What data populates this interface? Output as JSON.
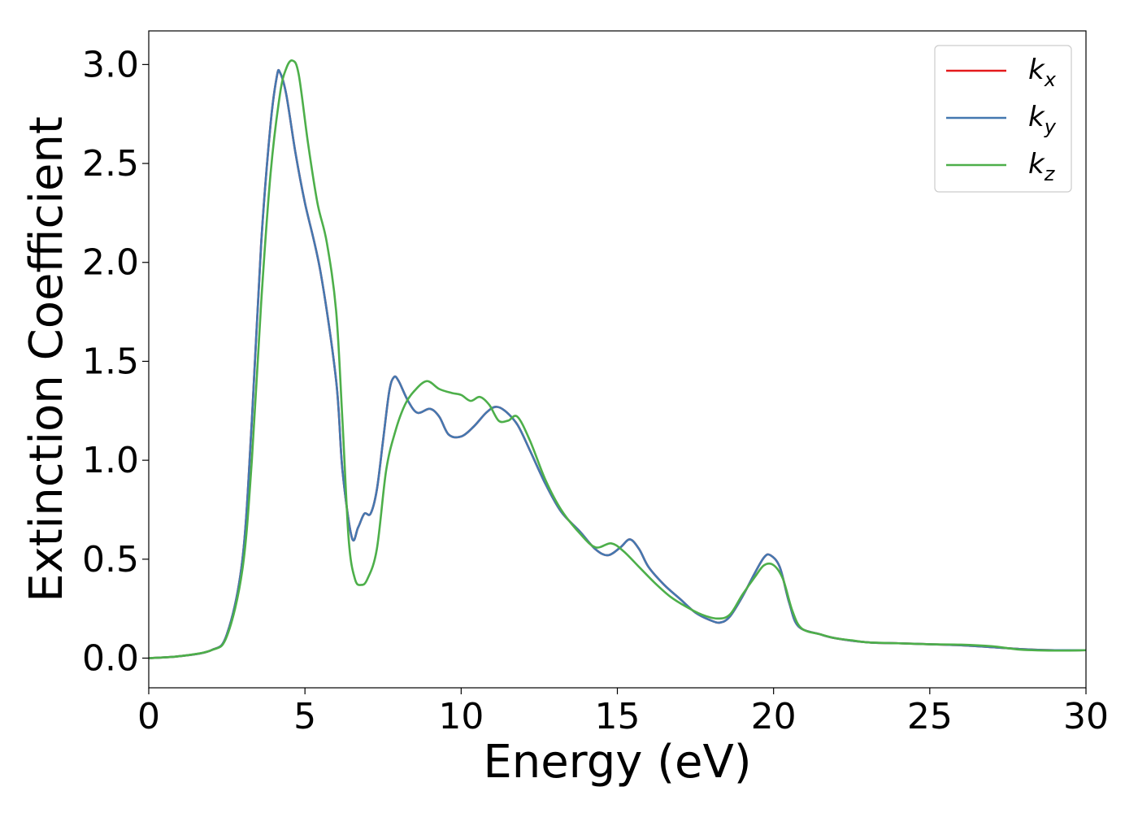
{
  "chart_data": {
    "type": "line",
    "title": "",
    "xlabel": "Energy (eV)",
    "ylabel": "Extinction Coefficient",
    "xlim": [
      0,
      30
    ],
    "ylim": [
      -0.15,
      3.17
    ],
    "xticks": [
      0,
      5,
      10,
      15,
      20,
      25,
      30
    ],
    "xtick_labels": [
      "0",
      "5",
      "10",
      "15",
      "20",
      "25",
      "30"
    ],
    "yticks": [
      0.0,
      0.5,
      1.0,
      1.5,
      2.0,
      2.5,
      3.0
    ],
    "ytick_labels": [
      "0.0",
      "0.5",
      "1.0",
      "1.5",
      "2.0",
      "2.5",
      "3.0"
    ],
    "grid": false,
    "legend_position": "top-right",
    "colors": {
      "kx": "#e41a1c",
      "ky": "#4478b0",
      "kz": "#4daf4a"
    },
    "series": [
      {
        "name": "k_x",
        "color": "#e41a1c",
        "points": [
          [
            0,
            0.0
          ],
          [
            1,
            0.01
          ],
          [
            2,
            0.04
          ],
          [
            2.5,
            0.12
          ],
          [
            3,
            0.5
          ],
          [
            3.3,
            1.2
          ],
          [
            3.6,
            2.1
          ],
          [
            3.9,
            2.7
          ],
          [
            4.1,
            2.94
          ],
          [
            4.2,
            2.96
          ],
          [
            4.4,
            2.85
          ],
          [
            4.7,
            2.55
          ],
          [
            5,
            2.3
          ],
          [
            5.5,
            1.95
          ],
          [
            6,
            1.4
          ],
          [
            6.2,
            0.95
          ],
          [
            6.5,
            0.61
          ],
          [
            6.7,
            0.66
          ],
          [
            6.9,
            0.73
          ],
          [
            7.1,
            0.73
          ],
          [
            7.3,
            0.85
          ],
          [
            7.5,
            1.1
          ],
          [
            7.7,
            1.35
          ],
          [
            7.85,
            1.42
          ],
          [
            8,
            1.4
          ],
          [
            8.3,
            1.3
          ],
          [
            8.6,
            1.24
          ],
          [
            9,
            1.26
          ],
          [
            9.3,
            1.22
          ],
          [
            9.6,
            1.13
          ],
          [
            10,
            1.12
          ],
          [
            10.4,
            1.17
          ],
          [
            10.8,
            1.24
          ],
          [
            11.1,
            1.27
          ],
          [
            11.4,
            1.25
          ],
          [
            11.8,
            1.18
          ],
          [
            12.2,
            1.05
          ],
          [
            12.7,
            0.88
          ],
          [
            13.2,
            0.74
          ],
          [
            13.8,
            0.64
          ],
          [
            14.3,
            0.55
          ],
          [
            14.7,
            0.52
          ],
          [
            15.1,
            0.56
          ],
          [
            15.4,
            0.6
          ],
          [
            15.7,
            0.55
          ],
          [
            16,
            0.46
          ],
          [
            16.5,
            0.37
          ],
          [
            17,
            0.3
          ],
          [
            17.5,
            0.23
          ],
          [
            18,
            0.19
          ],
          [
            18.3,
            0.18
          ],
          [
            18.6,
            0.21
          ],
          [
            19,
            0.31
          ],
          [
            19.4,
            0.43
          ],
          [
            19.7,
            0.51
          ],
          [
            19.9,
            0.52
          ],
          [
            20.2,
            0.46
          ],
          [
            20.5,
            0.28
          ],
          [
            20.8,
            0.16
          ],
          [
            21.5,
            0.12
          ],
          [
            22,
            0.1
          ],
          [
            23,
            0.08
          ],
          [
            24,
            0.075
          ],
          [
            25,
            0.07
          ],
          [
            26,
            0.065
          ],
          [
            27,
            0.055
          ],
          [
            28,
            0.045
          ],
          [
            29,
            0.04
          ],
          [
            30,
            0.04
          ]
        ]
      },
      {
        "name": "k_y",
        "color": "#4478b0",
        "points": [
          [
            0,
            0.0
          ],
          [
            1,
            0.01
          ],
          [
            2,
            0.04
          ],
          [
            2.5,
            0.12
          ],
          [
            3,
            0.5
          ],
          [
            3.3,
            1.2
          ],
          [
            3.6,
            2.1
          ],
          [
            3.9,
            2.7
          ],
          [
            4.1,
            2.94
          ],
          [
            4.2,
            2.96
          ],
          [
            4.4,
            2.85
          ],
          [
            4.7,
            2.55
          ],
          [
            5,
            2.3
          ],
          [
            5.5,
            1.95
          ],
          [
            6,
            1.4
          ],
          [
            6.2,
            0.95
          ],
          [
            6.5,
            0.61
          ],
          [
            6.7,
            0.66
          ],
          [
            6.9,
            0.73
          ],
          [
            7.1,
            0.73
          ],
          [
            7.3,
            0.85
          ],
          [
            7.5,
            1.1
          ],
          [
            7.7,
            1.35
          ],
          [
            7.85,
            1.42
          ],
          [
            8,
            1.4
          ],
          [
            8.3,
            1.3
          ],
          [
            8.6,
            1.24
          ],
          [
            9,
            1.26
          ],
          [
            9.3,
            1.22
          ],
          [
            9.6,
            1.13
          ],
          [
            10,
            1.12
          ],
          [
            10.4,
            1.17
          ],
          [
            10.8,
            1.24
          ],
          [
            11.1,
            1.27
          ],
          [
            11.4,
            1.25
          ],
          [
            11.8,
            1.18
          ],
          [
            12.2,
            1.05
          ],
          [
            12.7,
            0.88
          ],
          [
            13.2,
            0.74
          ],
          [
            13.8,
            0.64
          ],
          [
            14.3,
            0.55
          ],
          [
            14.7,
            0.52
          ],
          [
            15.1,
            0.56
          ],
          [
            15.4,
            0.6
          ],
          [
            15.7,
            0.55
          ],
          [
            16,
            0.46
          ],
          [
            16.5,
            0.37
          ],
          [
            17,
            0.3
          ],
          [
            17.5,
            0.23
          ],
          [
            18,
            0.19
          ],
          [
            18.3,
            0.18
          ],
          [
            18.6,
            0.21
          ],
          [
            19,
            0.31
          ],
          [
            19.4,
            0.43
          ],
          [
            19.7,
            0.51
          ],
          [
            19.9,
            0.52
          ],
          [
            20.2,
            0.46
          ],
          [
            20.5,
            0.28
          ],
          [
            20.8,
            0.16
          ],
          [
            21.5,
            0.12
          ],
          [
            22,
            0.1
          ],
          [
            23,
            0.08
          ],
          [
            24,
            0.075
          ],
          [
            25,
            0.07
          ],
          [
            26,
            0.065
          ],
          [
            27,
            0.055
          ],
          [
            28,
            0.045
          ],
          [
            29,
            0.04
          ],
          [
            30,
            0.04
          ]
        ]
      },
      {
        "name": "k_z",
        "color": "#4daf4a",
        "points": [
          [
            0,
            0.0
          ],
          [
            1,
            0.01
          ],
          [
            2,
            0.04
          ],
          [
            2.5,
            0.11
          ],
          [
            3,
            0.45
          ],
          [
            3.3,
            1.0
          ],
          [
            3.6,
            1.8
          ],
          [
            3.9,
            2.45
          ],
          [
            4.2,
            2.85
          ],
          [
            4.4,
            2.98
          ],
          [
            4.6,
            3.02
          ],
          [
            4.8,
            2.95
          ],
          [
            5.1,
            2.6
          ],
          [
            5.4,
            2.3
          ],
          [
            5.7,
            2.1
          ],
          [
            6,
            1.75
          ],
          [
            6.2,
            1.2
          ],
          [
            6.4,
            0.6
          ],
          [
            6.6,
            0.4
          ],
          [
            6.8,
            0.37
          ],
          [
            7,
            0.4
          ],
          [
            7.3,
            0.55
          ],
          [
            7.6,
            0.95
          ],
          [
            7.9,
            1.15
          ],
          [
            8.2,
            1.28
          ],
          [
            8.5,
            1.35
          ],
          [
            8.9,
            1.4
          ],
          [
            9.3,
            1.36
          ],
          [
            9.7,
            1.34
          ],
          [
            10,
            1.33
          ],
          [
            10.3,
            1.3
          ],
          [
            10.6,
            1.32
          ],
          [
            10.9,
            1.28
          ],
          [
            11.2,
            1.2
          ],
          [
            11.5,
            1.2
          ],
          [
            11.8,
            1.22
          ],
          [
            12.2,
            1.1
          ],
          [
            12.7,
            0.9
          ],
          [
            13.2,
            0.75
          ],
          [
            13.8,
            0.63
          ],
          [
            14.3,
            0.56
          ],
          [
            14.8,
            0.58
          ],
          [
            15.2,
            0.54
          ],
          [
            15.7,
            0.46
          ],
          [
            16.2,
            0.38
          ],
          [
            16.7,
            0.31
          ],
          [
            17.2,
            0.26
          ],
          [
            17.7,
            0.22
          ],
          [
            18.2,
            0.2
          ],
          [
            18.6,
            0.22
          ],
          [
            19,
            0.32
          ],
          [
            19.4,
            0.41
          ],
          [
            19.7,
            0.47
          ],
          [
            20,
            0.47
          ],
          [
            20.3,
            0.4
          ],
          [
            20.6,
            0.24
          ],
          [
            20.9,
            0.15
          ],
          [
            21.5,
            0.12
          ],
          [
            22,
            0.1
          ],
          [
            22.5,
            0.09
          ],
          [
            23,
            0.08
          ],
          [
            24,
            0.075
          ],
          [
            25,
            0.07
          ],
          [
            26,
            0.068
          ],
          [
            27,
            0.06
          ],
          [
            27.5,
            0.05
          ],
          [
            28,
            0.042
          ],
          [
            29,
            0.038
          ],
          [
            30,
            0.04
          ]
        ]
      }
    ]
  }
}
